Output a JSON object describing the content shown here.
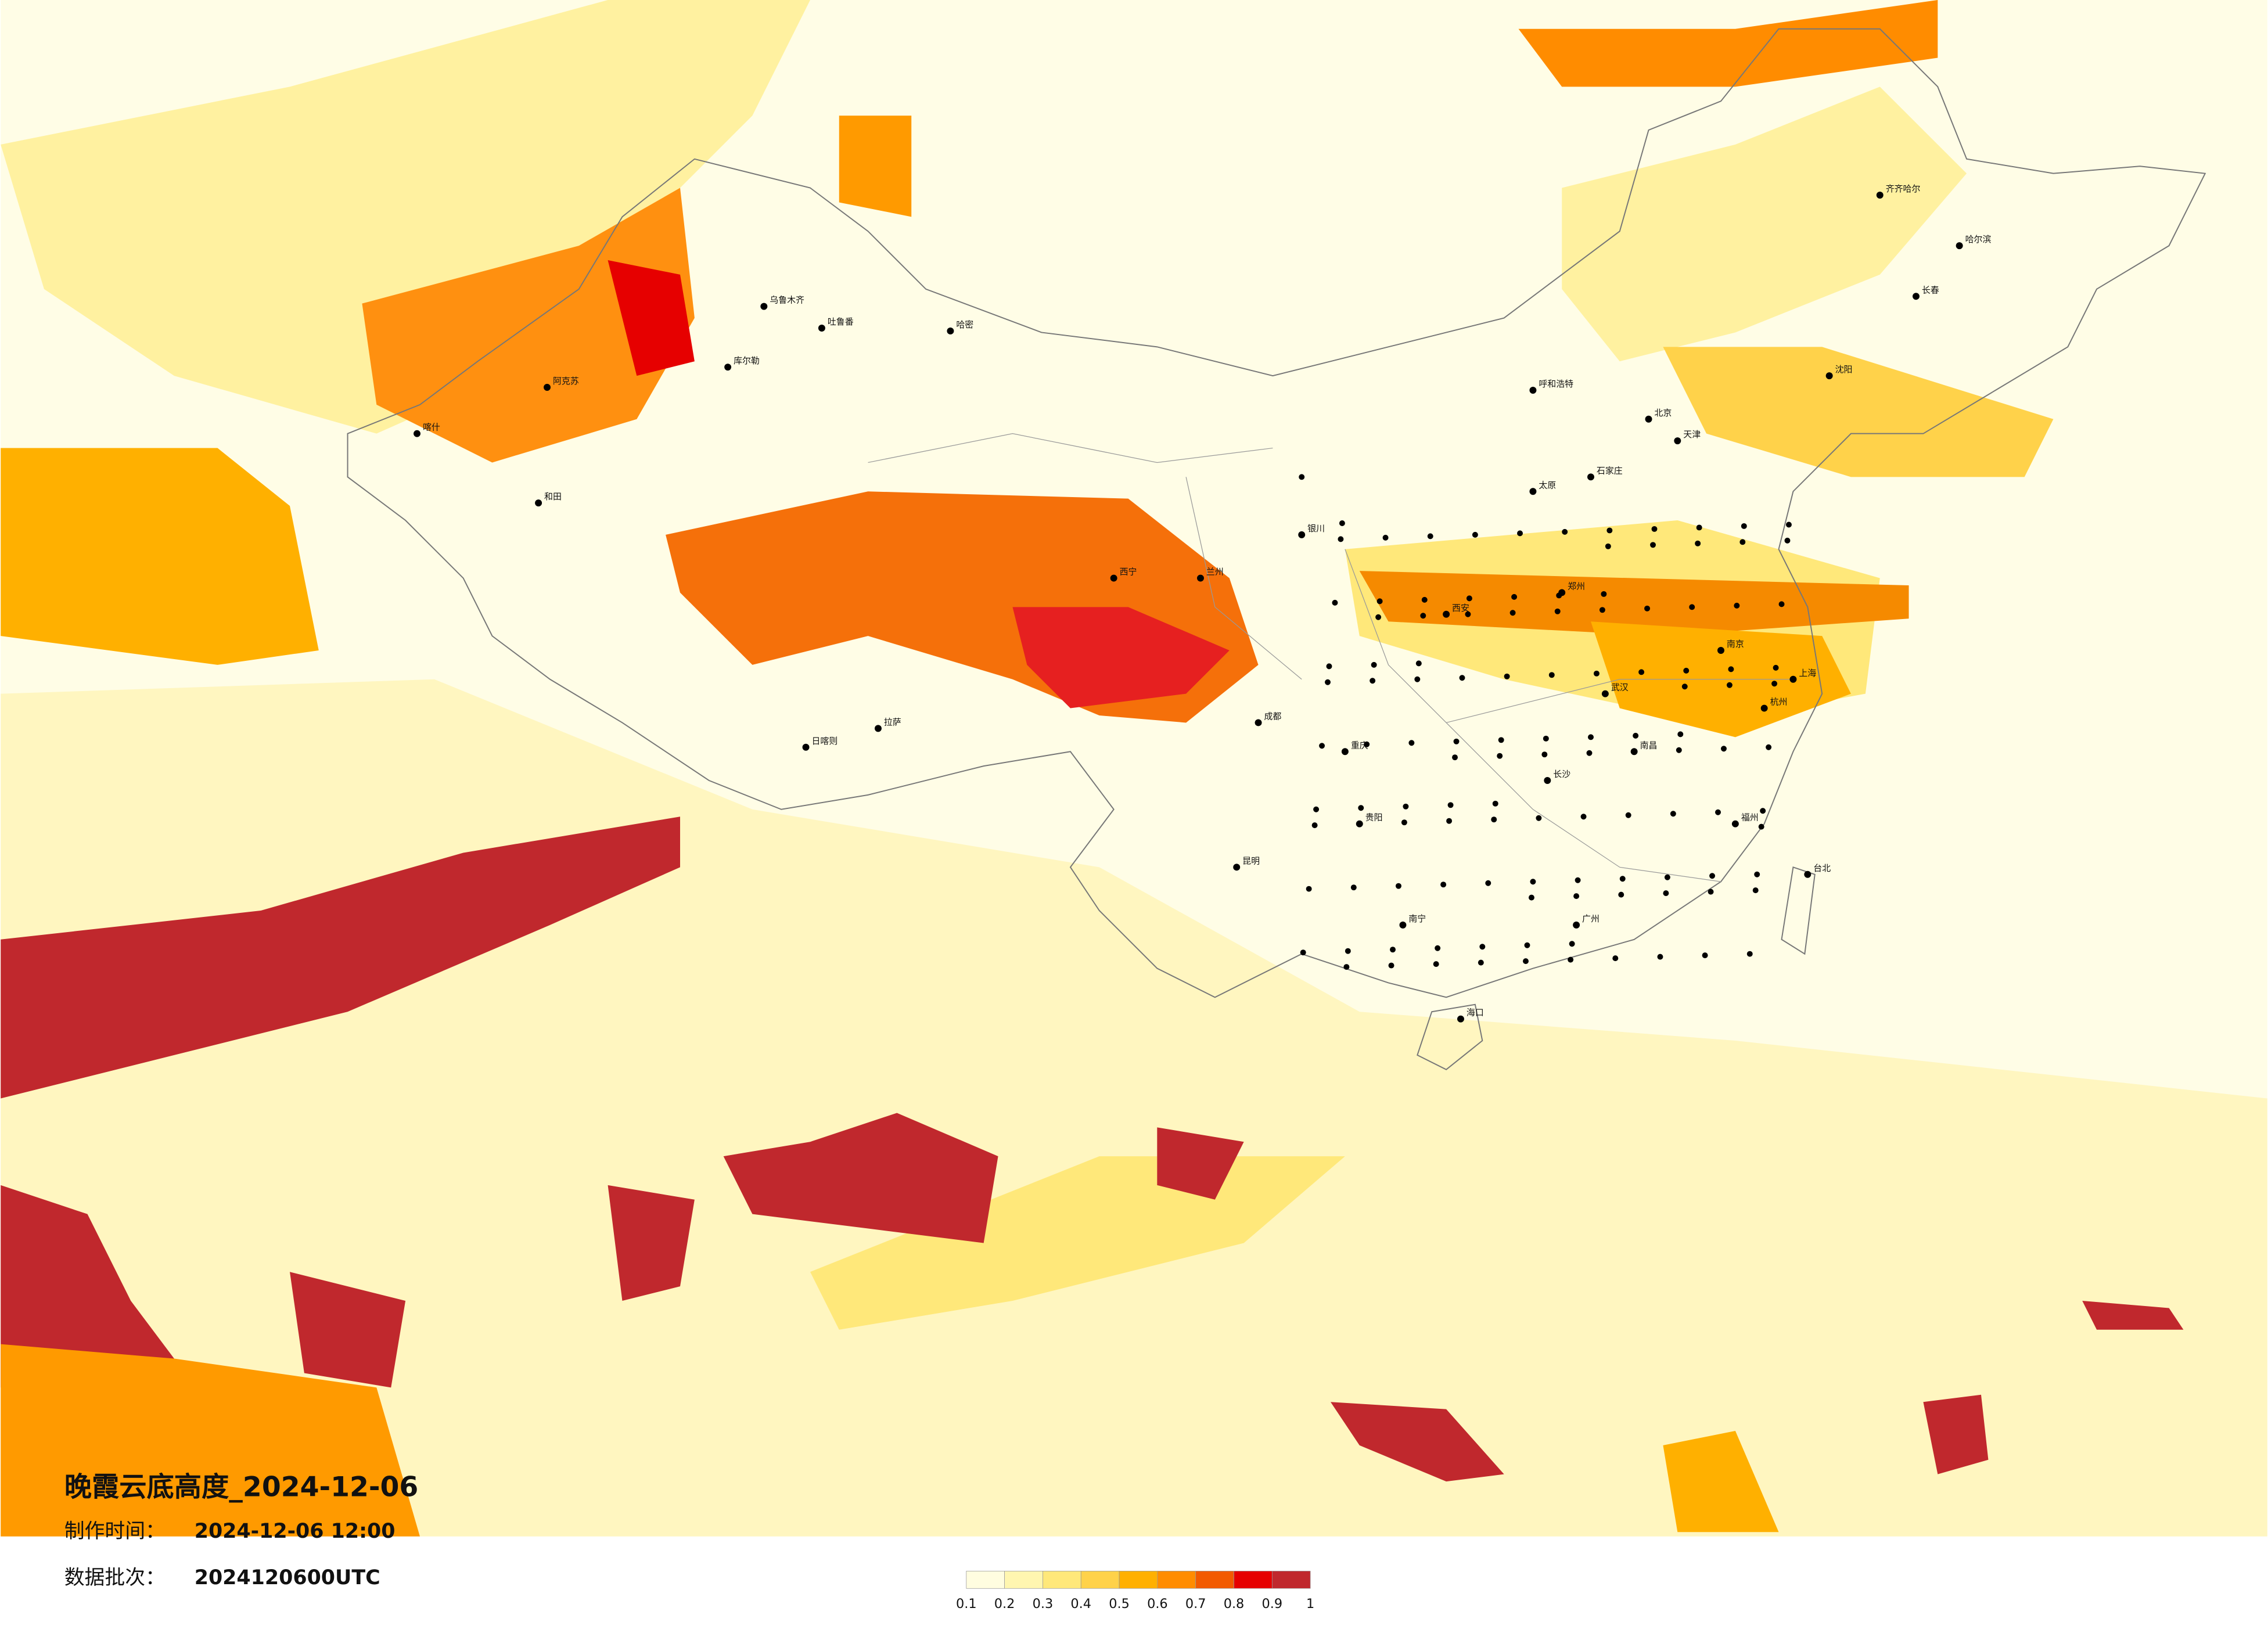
{
  "title": "晚霞云底高度_2024-12-06",
  "info": [
    {
      "label": "制作时间：",
      "value": "2024-12-06 12:00"
    },
    {
      "label": "数据批次：",
      "value": "2024120600UTC"
    }
  ],
  "legend": {
    "colors": [
      "#fffde0",
      "#fff6b0",
      "#ffe87a",
      "#ffd24a",
      "#ffb000",
      "#ff8c00",
      "#f25a00",
      "#e60000",
      "#c0282d"
    ],
    "ticks": [
      0.1,
      0.2,
      0.3,
      0.4,
      0.5,
      0.6,
      0.7,
      0.8,
      0.9,
      1
    ]
  },
  "cities": [
    "乌鲁木齐",
    "吐鲁番",
    "哈密",
    "库尔勒",
    "阿克苏",
    "喀什",
    "和田",
    "拉萨",
    "日喀则",
    "西宁",
    "兰州",
    "银川",
    "呼和浩特",
    "北京",
    "天津",
    "石家庄",
    "太原",
    "郑州",
    "西安",
    "成都",
    "重庆",
    "贵阳",
    "昆明",
    "南宁",
    "广州",
    "海口",
    "长沙",
    "武汉",
    "南昌",
    "南京",
    "上海",
    "杭州",
    "福州",
    "台北",
    "沈阳",
    "长春",
    "哈尔滨",
    "齐齐哈尔"
  ]
}
